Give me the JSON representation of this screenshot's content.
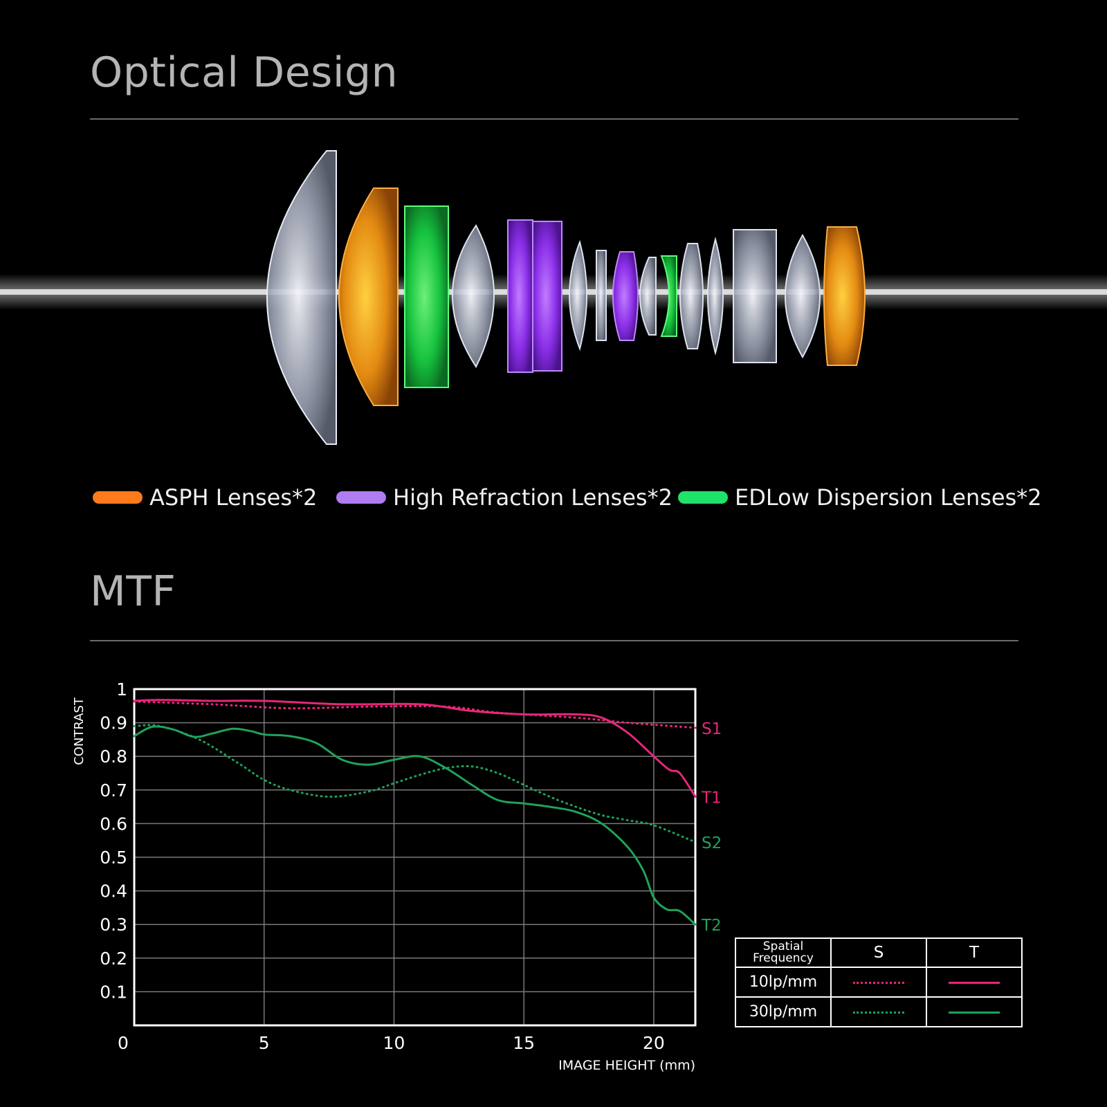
{
  "sections": {
    "optical_title": "Optical Design",
    "mtf_title": "MTF"
  },
  "legend": [
    {
      "label": "ASPH Lenses*2",
      "color": "#ff7a1a"
    },
    {
      "label": "High Refraction Lenses*2",
      "color": "#b07cf2"
    },
    {
      "label": "EDLow Dispersion Lenses*2",
      "color": "#1fe26a"
    }
  ],
  "colors": {
    "magenta": "#e8267a",
    "green": "#1fa35a",
    "clear_lens": "#c9cdd8",
    "orange_lens": "#e38a12",
    "green_lens": "#16c23e",
    "purple_lens": "#8a2ee8"
  },
  "lens_elements": [
    "clear",
    "orange",
    "green",
    "clear",
    "purple",
    "purple",
    "clear",
    "clear",
    "purple",
    "clear",
    "green",
    "clear",
    "clear",
    "clear",
    "clear",
    "orange"
  ],
  "chart_data": {
    "type": "line",
    "title": "MTF",
    "xlabel": "IMAGE HEIGHT  (mm)",
    "ylabel": "CONTRAST",
    "xlim": [
      0,
      21.6
    ],
    "ylim": [
      0,
      1
    ],
    "x_ticks": [
      "0",
      "5",
      "10",
      "15",
      "20"
    ],
    "x_tick_values": [
      0,
      5,
      10,
      15,
      20
    ],
    "y_ticks": [
      "1",
      "0.9",
      "0.8",
      "0.7",
      "0.6",
      "0.5",
      "0.4",
      "0.3",
      "0.2",
      "0.1"
    ],
    "y_tick_values": [
      1,
      0.9,
      0.8,
      0.7,
      0.6,
      0.5,
      0.4,
      0.3,
      0.2,
      0.1
    ],
    "grid": true,
    "series": [
      {
        "name": "S1",
        "frequency": "10lp/mm",
        "style": "dotted",
        "color": "#e8267a",
        "points": [
          [
            0,
            0.963
          ],
          [
            3,
            0.955
          ],
          [
            6,
            0.943
          ],
          [
            9,
            0.948
          ],
          [
            12,
            0.948
          ],
          [
            14,
            0.93
          ],
          [
            17,
            0.915
          ],
          [
            19,
            0.9
          ],
          [
            21.6,
            0.885
          ]
        ]
      },
      {
        "name": "T1",
        "frequency": "10lp/mm",
        "style": "solid",
        "color": "#e8267a",
        "points": [
          [
            0,
            0.965
          ],
          [
            1,
            0.968
          ],
          [
            3,
            0.965
          ],
          [
            5,
            0.965
          ],
          [
            8,
            0.955
          ],
          [
            11,
            0.955
          ],
          [
            13,
            0.935
          ],
          [
            15,
            0.925
          ],
          [
            17,
            0.925
          ],
          [
            18,
            0.915
          ],
          [
            19,
            0.87
          ],
          [
            20,
            0.8
          ],
          [
            20.6,
            0.76
          ],
          [
            21,
            0.75
          ],
          [
            21.6,
            0.68
          ]
        ]
      },
      {
        "name": "S2",
        "frequency": "30lp/mm",
        "style": "dotted",
        "color": "#1fa35a",
        "points": [
          [
            0,
            0.89
          ],
          [
            1,
            0.89
          ],
          [
            2.5,
            0.85
          ],
          [
            4,
            0.78
          ],
          [
            5,
            0.73
          ],
          [
            6,
            0.7
          ],
          [
            7.5,
            0.68
          ],
          [
            9,
            0.695
          ],
          [
            10,
            0.72
          ],
          [
            11,
            0.745
          ],
          [
            12,
            0.765
          ],
          [
            13,
            0.77
          ],
          [
            14,
            0.75
          ],
          [
            15,
            0.715
          ],
          [
            16,
            0.68
          ],
          [
            17,
            0.65
          ],
          [
            18,
            0.625
          ],
          [
            19,
            0.61
          ],
          [
            20,
            0.595
          ],
          [
            21.6,
            0.545
          ]
        ]
      },
      {
        "name": "T2",
        "frequency": "30lp/mm",
        "style": "solid",
        "color": "#1fa35a",
        "points": [
          [
            0,
            0.86
          ],
          [
            0.7,
            0.888
          ],
          [
            1.5,
            0.88
          ],
          [
            2.3,
            0.858
          ],
          [
            3,
            0.868
          ],
          [
            3.8,
            0.882
          ],
          [
            4.5,
            0.875
          ],
          [
            5,
            0.865
          ],
          [
            6,
            0.86
          ],
          [
            7,
            0.84
          ],
          [
            8,
            0.79
          ],
          [
            9,
            0.775
          ],
          [
            10,
            0.79
          ],
          [
            11,
            0.8
          ],
          [
            12,
            0.765
          ],
          [
            13,
            0.715
          ],
          [
            14,
            0.67
          ],
          [
            15,
            0.66
          ],
          [
            16,
            0.65
          ],
          [
            17,
            0.635
          ],
          [
            18,
            0.6
          ],
          [
            19,
            0.53
          ],
          [
            19.6,
            0.46
          ],
          [
            20,
            0.38
          ],
          [
            20.5,
            0.345
          ],
          [
            21,
            0.34
          ],
          [
            21.6,
            0.3
          ]
        ]
      }
    ],
    "legend_table": {
      "header": [
        "Spatial\nFrequency",
        "S",
        "T"
      ],
      "rows": [
        {
          "frequency": "10lp/mm",
          "color": "#e8267a"
        },
        {
          "frequency": "30lp/mm",
          "color": "#1fa35a"
        }
      ]
    }
  }
}
